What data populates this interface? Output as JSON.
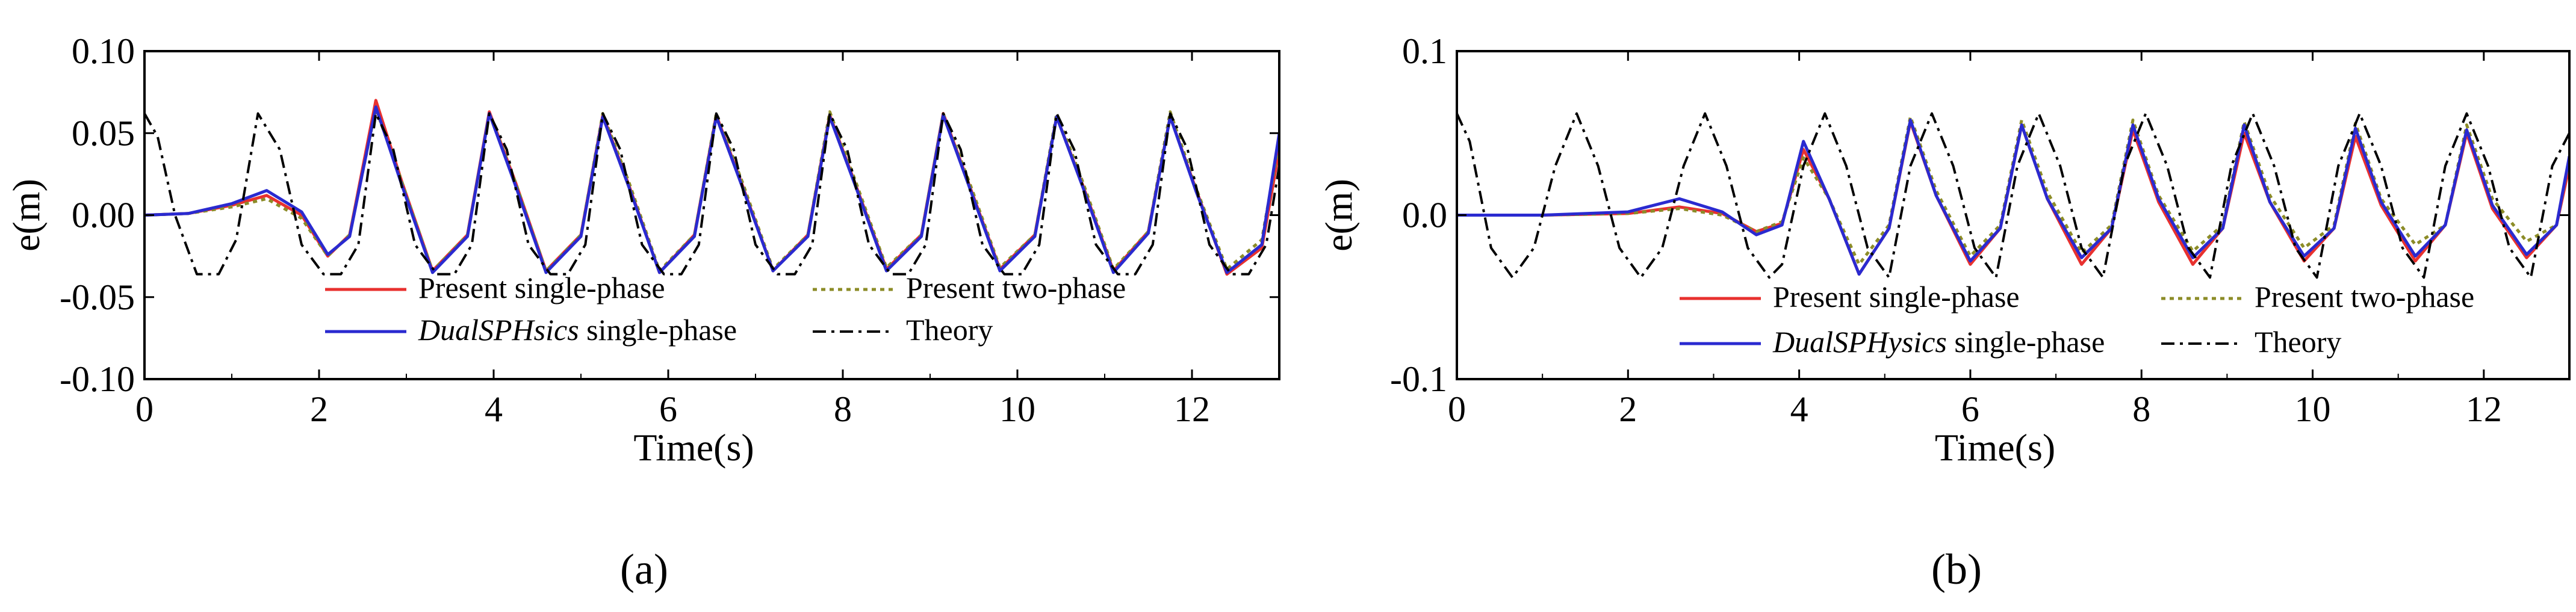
{
  "figure": {
    "captions": [
      "(a)",
      "(b)"
    ]
  },
  "chart_data": [
    {
      "type": "line",
      "caption": "(a)",
      "xlabel": "Time(s)",
      "ylabel": "e(m)",
      "xlim": [
        0,
        13
      ],
      "ylim": [
        -0.1,
        0.1
      ],
      "xticks": [
        0,
        2,
        4,
        6,
        8,
        10,
        12
      ],
      "xtick_labels": [
        "0",
        "2",
        "4",
        "6",
        "8",
        "10",
        "12"
      ],
      "yticks": [
        -0.1,
        -0.05,
        0.0,
        0.05,
        0.1
      ],
      "ytick_labels": [
        "-0.10",
        "-0.05",
        "0.00",
        "0.05",
        "0.10"
      ],
      "grid": false,
      "legend_position": "bottom",
      "series": [
        {
          "name": "Present single-phase",
          "color": "#e8312f",
          "dash": "solid",
          "x": [
            0,
            0.5,
            1.0,
            1.4,
            1.8,
            2.1,
            2.35,
            2.65,
            2.95,
            3.3,
            3.7,
            3.95,
            4.25,
            4.6,
            5.0,
            5.25,
            5.55,
            5.9,
            6.3,
            6.55,
            6.85,
            7.2,
            7.6,
            7.85,
            8.15,
            8.5,
            8.9,
            9.15,
            9.45,
            9.8,
            10.2,
            10.45,
            10.75,
            11.1,
            11.5,
            11.75,
            12.05,
            12.4,
            12.8,
            13.0
          ],
          "y": [
            0.0,
            0.001,
            0.006,
            0.012,
            0.0,
            -0.025,
            -0.012,
            0.07,
            0.02,
            -0.034,
            -0.012,
            0.063,
            0.02,
            -0.034,
            -0.012,
            0.061,
            0.018,
            -0.035,
            -0.012,
            0.061,
            0.018,
            -0.034,
            -0.012,
            0.061,
            0.018,
            -0.033,
            -0.012,
            0.062,
            0.018,
            -0.033,
            -0.012,
            0.06,
            0.018,
            -0.034,
            -0.01,
            0.06,
            0.015,
            -0.036,
            -0.02,
            0.04
          ]
        },
        {
          "name": "Present two-phase",
          "color": "#8c8c28",
          "dash": "dotted",
          "x": [
            0,
            0.5,
            1.0,
            1.4,
            1.8,
            2.1,
            2.35,
            2.65,
            2.95,
            3.3,
            3.7,
            3.95,
            4.25,
            4.6,
            5.0,
            5.25,
            5.55,
            5.9,
            6.3,
            6.55,
            6.85,
            7.2,
            7.6,
            7.85,
            8.15,
            8.5,
            8.9,
            9.15,
            9.45,
            9.8,
            10.2,
            10.45,
            10.75,
            11.1,
            11.5,
            11.75,
            12.05,
            12.4,
            12.8,
            13.0
          ],
          "y": [
            0.0,
            0.001,
            0.005,
            0.01,
            -0.002,
            -0.025,
            -0.012,
            0.065,
            0.02,
            -0.034,
            -0.012,
            0.062,
            0.02,
            -0.034,
            -0.012,
            0.062,
            0.02,
            -0.034,
            -0.012,
            0.062,
            0.02,
            -0.033,
            -0.012,
            0.063,
            0.02,
            -0.032,
            -0.012,
            0.062,
            0.02,
            -0.032,
            -0.012,
            0.062,
            0.02,
            -0.033,
            -0.01,
            0.063,
            0.016,
            -0.033,
            -0.015,
            0.045
          ]
        },
        {
          "name": "DualSPHsics single-phase",
          "color": "#2a2ad0",
          "dash": "solid",
          "x": [
            0,
            0.5,
            1.0,
            1.4,
            1.8,
            2.1,
            2.35,
            2.65,
            2.95,
            3.3,
            3.7,
            3.95,
            4.25,
            4.6,
            5.0,
            5.25,
            5.55,
            5.9,
            6.3,
            6.55,
            6.85,
            7.2,
            7.6,
            7.85,
            8.15,
            8.5,
            8.9,
            9.15,
            9.45,
            9.8,
            10.2,
            10.45,
            10.75,
            11.1,
            11.5,
            11.75,
            12.05,
            12.4,
            12.8,
            13.0
          ],
          "y": [
            0.0,
            0.001,
            0.007,
            0.015,
            0.002,
            -0.024,
            -0.013,
            0.066,
            0.018,
            -0.035,
            -0.013,
            0.062,
            0.018,
            -0.035,
            -0.013,
            0.06,
            0.017,
            -0.035,
            -0.013,
            0.06,
            0.017,
            -0.034,
            -0.013,
            0.06,
            0.017,
            -0.034,
            -0.013,
            0.061,
            0.017,
            -0.034,
            -0.013,
            0.06,
            0.017,
            -0.035,
            -0.011,
            0.06,
            0.014,
            -0.035,
            -0.018,
            0.05
          ]
        },
        {
          "name": "Theory",
          "color": "#000000",
          "dash": "dashdot",
          "x": [
            0,
            0.15,
            0.35,
            0.6,
            0.85,
            1.05,
            1.3,
            1.55,
            1.8,
            2.05,
            2.25,
            2.45,
            2.65,
            2.85,
            3.1,
            3.35,
            3.55,
            3.75,
            3.95,
            4.15,
            4.4,
            4.65,
            4.85,
            5.05,
            5.25,
            5.45,
            5.7,
            5.95,
            6.15,
            6.35,
            6.55,
            6.75,
            7.0,
            7.25,
            7.45,
            7.65,
            7.85,
            8.05,
            8.3,
            8.55,
            8.75,
            8.95,
            9.15,
            9.35,
            9.6,
            9.85,
            10.05,
            10.25,
            10.45,
            10.65,
            10.9,
            11.15,
            11.35,
            11.55,
            11.75,
            11.95,
            12.2,
            12.45,
            12.65,
            12.85,
            13.0
          ],
          "y": [
            0.062,
            0.048,
            0.0,
            -0.036,
            -0.036,
            -0.015,
            0.062,
            0.04,
            -0.018,
            -0.036,
            -0.036,
            -0.018,
            0.062,
            0.04,
            -0.018,
            -0.036,
            -0.036,
            -0.018,
            0.062,
            0.04,
            -0.018,
            -0.036,
            -0.036,
            -0.018,
            0.062,
            0.04,
            -0.018,
            -0.036,
            -0.036,
            -0.018,
            0.062,
            0.04,
            -0.018,
            -0.036,
            -0.036,
            -0.018,
            0.062,
            0.04,
            -0.018,
            -0.036,
            -0.036,
            -0.018,
            0.062,
            0.04,
            -0.018,
            -0.036,
            -0.036,
            -0.018,
            0.062,
            0.04,
            -0.018,
            -0.036,
            -0.036,
            -0.018,
            0.062,
            0.04,
            -0.018,
            -0.036,
            -0.036,
            -0.018,
            0.03
          ]
        }
      ]
    },
    {
      "type": "line",
      "caption": "(b)",
      "xlabel": "Time(s)",
      "ylabel": "e(m)",
      "xlim": [
        0,
        13
      ],
      "ylim": [
        -0.1,
        0.1
      ],
      "xticks": [
        0,
        2,
        4,
        6,
        8,
        10,
        12
      ],
      "xtick_labels": [
        "0",
        "2",
        "4",
        "6",
        "8",
        "10",
        "12"
      ],
      "yticks": [
        -0.1,
        0.0,
        0.1
      ],
      "ytick_labels": [
        "-0.1",
        "0.0",
        "0.1"
      ],
      "grid": false,
      "legend_position": "bottom",
      "series": [
        {
          "name": "Present single-phase",
          "color": "#e8312f",
          "dash": "solid",
          "x": [
            0,
            1.0,
            2.0,
            2.6,
            3.1,
            3.5,
            3.8,
            4.05,
            4.35,
            4.7,
            5.05,
            5.3,
            5.6,
            6.0,
            6.35,
            6.6,
            6.9,
            7.3,
            7.65,
            7.9,
            8.2,
            8.6,
            8.95,
            9.2,
            9.5,
            9.9,
            10.25,
            10.5,
            10.8,
            11.2,
            11.55,
            11.8,
            12.1,
            12.5,
            12.85,
            13.0
          ],
          "y": [
            0.0,
            0.0,
            0.001,
            0.005,
            0.001,
            -0.01,
            -0.005,
            0.04,
            0.01,
            -0.036,
            -0.008,
            0.057,
            0.012,
            -0.03,
            -0.008,
            0.055,
            0.01,
            -0.03,
            -0.008,
            0.052,
            0.008,
            -0.03,
            -0.008,
            0.05,
            0.008,
            -0.028,
            -0.008,
            0.048,
            0.006,
            -0.028,
            -0.006,
            0.05,
            0.004,
            -0.026,
            -0.006,
            0.03
          ]
        },
        {
          "name": "Present two-phase",
          "color": "#8c8c28",
          "dash": "dotted",
          "x": [
            0,
            1.0,
            2.0,
            2.6,
            3.1,
            3.5,
            3.8,
            4.05,
            4.35,
            4.7,
            5.05,
            5.3,
            5.6,
            6.0,
            6.35,
            6.6,
            6.9,
            7.3,
            7.65,
            7.9,
            8.2,
            8.6,
            8.95,
            9.2,
            9.5,
            9.9,
            10.25,
            10.5,
            10.8,
            11.2,
            11.55,
            11.8,
            12.1,
            12.5,
            12.85,
            13.0
          ],
          "y": [
            0.0,
            0.0,
            0.001,
            0.004,
            0.0,
            -0.01,
            -0.004,
            0.035,
            0.01,
            -0.03,
            -0.006,
            0.06,
            0.015,
            -0.025,
            -0.006,
            0.058,
            0.014,
            -0.023,
            -0.006,
            0.058,
            0.012,
            -0.022,
            -0.006,
            0.057,
            0.012,
            -0.02,
            -0.006,
            0.056,
            0.01,
            -0.018,
            -0.006,
            0.055,
            0.01,
            -0.016,
            -0.006,
            0.035
          ]
        },
        {
          "name": "DualSPHysics single-phase",
          "color": "#2a2ad0",
          "dash": "solid",
          "x": [
            0,
            1.0,
            2.0,
            2.6,
            3.1,
            3.5,
            3.8,
            4.05,
            4.35,
            4.7,
            5.05,
            5.3,
            5.6,
            6.0,
            6.35,
            6.6,
            6.9,
            7.3,
            7.65,
            7.9,
            8.2,
            8.6,
            8.95,
            9.2,
            9.5,
            9.9,
            10.25,
            10.5,
            10.8,
            11.2,
            11.55,
            11.8,
            12.1,
            12.5,
            12.85,
            13.0
          ],
          "y": [
            0.0,
            0.0,
            0.002,
            0.01,
            0.002,
            -0.012,
            -0.006,
            0.045,
            0.01,
            -0.036,
            -0.008,
            0.058,
            0.012,
            -0.028,
            -0.008,
            0.055,
            0.01,
            -0.026,
            -0.008,
            0.055,
            0.01,
            -0.026,
            -0.008,
            0.055,
            0.008,
            -0.025,
            -0.008,
            0.053,
            0.008,
            -0.025,
            -0.006,
            0.052,
            0.006,
            -0.024,
            -0.006,
            0.036
          ]
        },
        {
          "name": "Theory",
          "color": "#000000",
          "dash": "dashdot",
          "x": [
            0,
            0.15,
            0.4,
            0.65,
            0.9,
            1.15,
            1.4,
            1.65,
            1.9,
            2.15,
            2.4,
            2.65,
            2.9,
            3.15,
            3.4,
            3.65,
            3.8,
            4.05,
            4.3,
            4.55,
            4.8,
            5.05,
            5.3,
            5.55,
            5.8,
            6.05,
            6.3,
            6.55,
            6.8,
            7.05,
            7.3,
            7.55,
            7.8,
            8.05,
            8.3,
            8.55,
            8.8,
            9.05,
            9.3,
            9.55,
            9.8,
            10.05,
            10.3,
            10.55,
            10.8,
            11.05,
            11.3,
            11.55,
            11.8,
            12.05,
            12.3,
            12.55,
            12.8,
            13.0
          ],
          "y": [
            0.062,
            0.045,
            -0.02,
            -0.038,
            -0.02,
            0.03,
            0.062,
            0.03,
            -0.02,
            -0.038,
            -0.02,
            0.03,
            0.062,
            0.03,
            -0.02,
            -0.038,
            -0.03,
            0.03,
            0.062,
            0.03,
            -0.02,
            -0.038,
            0.03,
            0.062,
            0.03,
            -0.02,
            -0.038,
            0.03,
            0.062,
            0.03,
            -0.02,
            -0.038,
            0.03,
            0.062,
            0.03,
            -0.02,
            -0.038,
            0.03,
            0.062,
            0.03,
            -0.02,
            -0.038,
            0.03,
            0.062,
            0.03,
            -0.02,
            -0.038,
            0.03,
            0.062,
            0.03,
            -0.02,
            -0.038,
            0.03,
            0.05
          ]
        }
      ]
    }
  ]
}
